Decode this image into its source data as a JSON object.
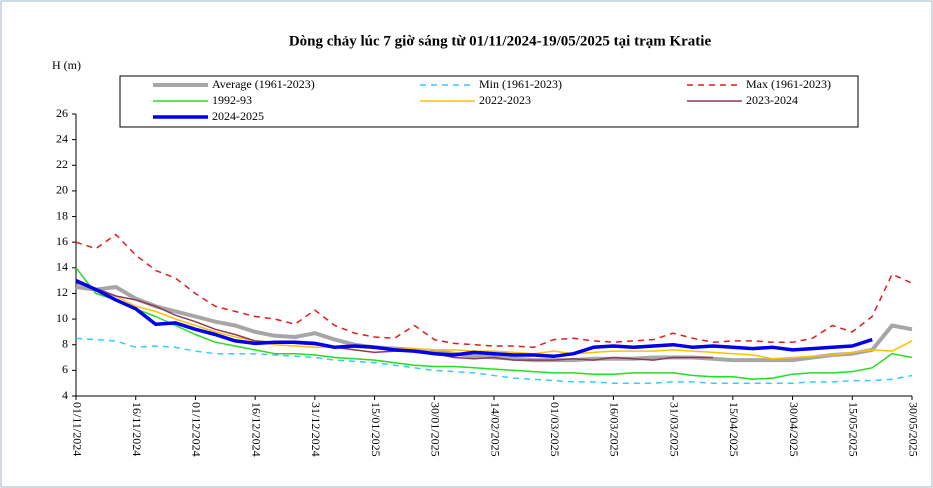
{
  "chart_data": {
    "type": "line",
    "title": "Dòng chảy lúc 7 giờ sáng từ 01/11/2024-19/05/2025 tại trạm Kratie",
    "y_label": "H (m)",
    "x": [
      "01/11/2024",
      "06/11/2024",
      "11/11/2024",
      "16/11/2024",
      "21/11/2024",
      "26/11/2024",
      "01/12/2024",
      "06/12/2024",
      "11/12/2024",
      "16/12/2024",
      "21/12/2024",
      "26/12/2024",
      "31/12/2024",
      "05/01/2025",
      "10/01/2025",
      "15/01/2025",
      "20/01/2025",
      "25/01/2025",
      "30/01/2025",
      "04/02/2025",
      "09/02/2025",
      "14/02/2025",
      "19/02/2025",
      "24/02/2025",
      "01/03/2025",
      "06/03/2025",
      "11/03/2025",
      "16/03/2025",
      "21/03/2025",
      "26/03/2025",
      "31/03/2025",
      "05/04/2025",
      "10/04/2025",
      "15/04/2025",
      "20/04/2025",
      "25/04/2025",
      "30/04/2025",
      "05/05/2025",
      "10/05/2025",
      "15/05/2025",
      "20/05/2025",
      "25/05/2025",
      "30/05/2025"
    ],
    "xlim": [
      "01/11/2024",
      "30/05/2025"
    ],
    "xticks": [
      "01/11/2024",
      "16/11/2024",
      "01/12/2024",
      "16/12/2024",
      "31/12/2024",
      "15/01/2025",
      "30/01/2025",
      "14/02/2025",
      "01/03/2025",
      "16/03/2025",
      "31/03/2025",
      "15/04/2025",
      "30/04/2025",
      "15/05/2025",
      "30/05/2025"
    ],
    "ylim": [
      4,
      26
    ],
    "yticks": [
      4,
      6,
      8,
      10,
      12,
      14,
      16,
      18,
      20,
      22,
      24,
      26
    ],
    "series": [
      {
        "name": "Average (1961-2023)",
        "color": "#a6a6a6",
        "width": 4,
        "dash": false,
        "values": [
          12.5,
          12.3,
          12.5,
          11.6,
          11.0,
          10.6,
          10.2,
          9.8,
          9.5,
          9.0,
          8.7,
          8.6,
          8.9,
          8.4,
          8.0,
          7.8,
          7.7,
          7.6,
          7.5,
          7.3,
          7.1,
          7.0,
          6.9,
          6.8,
          6.8,
          6.8,
          6.9,
          6.9,
          6.9,
          7.0,
          7.0,
          7.0,
          6.9,
          6.8,
          6.8,
          6.8,
          6.8,
          7.0,
          7.2,
          7.3,
          7.6,
          9.5,
          9.2
        ]
      },
      {
        "name": "Min (1961-2023)",
        "color": "#33ccff",
        "width": 1.5,
        "dash": true,
        "values": [
          8.5,
          8.4,
          8.3,
          7.8,
          7.9,
          7.8,
          7.5,
          7.3,
          7.3,
          7.3,
          7.2,
          7.1,
          7.0,
          6.8,
          6.7,
          6.6,
          6.4,
          6.2,
          6.0,
          5.9,
          5.8,
          5.6,
          5.4,
          5.3,
          5.2,
          5.1,
          5.1,
          5.0,
          5.0,
          5.0,
          5.1,
          5.1,
          5.0,
          5.0,
          5.0,
          5.0,
          5.0,
          5.1,
          5.1,
          5.2,
          5.2,
          5.3,
          5.6
        ]
      },
      {
        "name": "Max (1961-2023)",
        "color": "#e31a1c",
        "width": 1.5,
        "dash": true,
        "values": [
          16.0,
          15.5,
          16.6,
          15.0,
          13.8,
          13.2,
          12.0,
          11.0,
          10.6,
          10.2,
          10.0,
          9.6,
          10.7,
          9.5,
          8.9,
          8.6,
          8.5,
          9.5,
          8.4,
          8.1,
          8.0,
          7.9,
          7.9,
          7.8,
          8.4,
          8.5,
          8.3,
          8.2,
          8.3,
          8.4,
          8.9,
          8.5,
          8.2,
          8.3,
          8.3,
          8.2,
          8.2,
          8.5,
          9.5,
          9.0,
          10.2,
          13.5,
          12.8
        ]
      },
      {
        "name": "1992-93",
        "color": "#22dd22",
        "width": 1.5,
        "dash": false,
        "values": [
          14.0,
          12.0,
          11.5,
          10.8,
          10.2,
          9.5,
          8.8,
          8.2,
          7.9,
          7.6,
          7.3,
          7.3,
          7.2,
          7.0,
          6.9,
          6.8,
          6.6,
          6.4,
          6.3,
          6.3,
          6.2,
          6.1,
          6.0,
          5.9,
          5.8,
          5.8,
          5.7,
          5.7,
          5.8,
          5.8,
          5.8,
          5.6,
          5.5,
          5.5,
          5.3,
          5.4,
          5.7,
          5.8,
          5.8,
          5.9,
          6.2,
          7.3,
          7.0
        ]
      },
      {
        "name": "2022-2023",
        "color": "#ffc000",
        "width": 1.5,
        "dash": false,
        "values": [
          13.0,
          12.2,
          11.8,
          11.0,
          10.6,
          10.0,
          9.5,
          9.0,
          8.6,
          8.3,
          8.0,
          7.9,
          7.8,
          7.8,
          7.8,
          7.7,
          7.7,
          7.7,
          7.6,
          7.6,
          7.5,
          7.5,
          7.4,
          7.3,
          7.5,
          7.3,
          7.4,
          7.5,
          7.5,
          7.5,
          7.6,
          7.5,
          7.4,
          7.3,
          7.2,
          6.9,
          7.0,
          7.1,
          7.2,
          7.4,
          7.6,
          7.5,
          8.3
        ]
      },
      {
        "name": "2023-2024",
        "color": "#8b3a5a",
        "width": 1.5,
        "dash": false,
        "values": [
          12.8,
          12.4,
          11.8,
          11.5,
          11.0,
          10.3,
          9.8,
          9.2,
          8.8,
          8.3,
          8.2,
          8.1,
          8.0,
          7.8,
          7.6,
          7.4,
          7.5,
          7.5,
          7.3,
          7.0,
          6.9,
          7.0,
          6.8,
          6.8,
          6.8,
          6.9,
          6.8,
          7.0,
          6.9,
          6.8,
          7.0,
          7.0,
          7.0,
          null,
          null,
          null,
          null,
          null,
          null,
          null,
          null,
          null,
          null
        ]
      },
      {
        "name": "2024-2025",
        "color": "#0000ee",
        "width": 3.5,
        "dash": false,
        "values": [
          13.0,
          12.3,
          11.5,
          10.8,
          9.6,
          9.7,
          9.2,
          8.8,
          8.3,
          8.1,
          8.2,
          8.2,
          8.1,
          7.8,
          7.9,
          7.8,
          7.6,
          7.5,
          7.3,
          7.2,
          7.4,
          7.3,
          7.2,
          7.2,
          7.1,
          7.3,
          7.8,
          7.9,
          7.8,
          7.9,
          8.0,
          7.8,
          7.9,
          7.8,
          7.7,
          7.8,
          7.6,
          7.7,
          7.8,
          7.9,
          8.4,
          null,
          null
        ]
      }
    ]
  }
}
